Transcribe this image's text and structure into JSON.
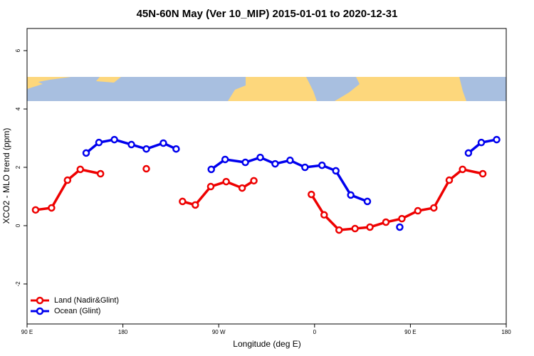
{
  "chart_data": {
    "type": "line",
    "title": "45N-60N May (Ver 10_MIP)   2015-01-01 to 2020-12-31",
    "x_label": "Longitude (deg E)",
    "y_label": "XCO2 - MLO trend (ppm)",
    "xlim": [
      90,
      540
    ],
    "ylim": [
      -3.37,
      6.76
    ],
    "xticks": [
      {
        "value": 90,
        "label": "90 E"
      },
      180,
      {
        "value": 270,
        "label": "90 W"
      },
      {
        "value": 360,
        "label": "0"
      },
      {
        "value": 450,
        "label": "90 E"
      },
      180
    ],
    "yticks": [
      -2,
      0,
      2,
      4,
      6
    ],
    "legend": "bottom-left",
    "series": [
      {
        "name": "Land (Nadir&Glint)",
        "color": "#ee0000",
        "x": [
          98,
          113,
          128,
          140,
          159,
          null,
          202,
          null,
          236,
          248,
          262.5,
          277,
          292,
          303,
          null,
          357,
          369,
          383,
          398,
          412,
          427,
          442,
          457,
          472,
          486.5,
          499,
          518
        ],
        "values": [
          0.54,
          0.61,
          1.56,
          1.93,
          1.78,
          null,
          1.95,
          null,
          0.83,
          0.71,
          1.34,
          1.51,
          1.29,
          1.54,
          null,
          1.07,
          0.37,
          -0.15,
          -0.1,
          -0.05,
          0.12,
          0.24,
          0.51,
          0.61,
          1.56,
          1.93,
          1.78
        ]
      },
      {
        "name": "Ocean (Glint)",
        "color": "#0000ee",
        "x": [
          145.5,
          157.5,
          172,
          188,
          202,
          218,
          230,
          null,
          263,
          276,
          295,
          309,
          323,
          337,
          351,
          367,
          380,
          394,
          409.6,
          null,
          440,
          null,
          504.5,
          516.6,
          531
        ],
        "values": [
          2.49,
          2.85,
          2.95,
          2.78,
          2.63,
          2.83,
          2.63,
          null,
          1.93,
          2.27,
          2.17,
          2.34,
          2.12,
          2.24,
          2.0,
          2.07,
          1.88,
          1.05,
          0.83,
          null,
          -0.05,
          null,
          2.49,
          2.85,
          2.95
        ]
      }
    ]
  }
}
